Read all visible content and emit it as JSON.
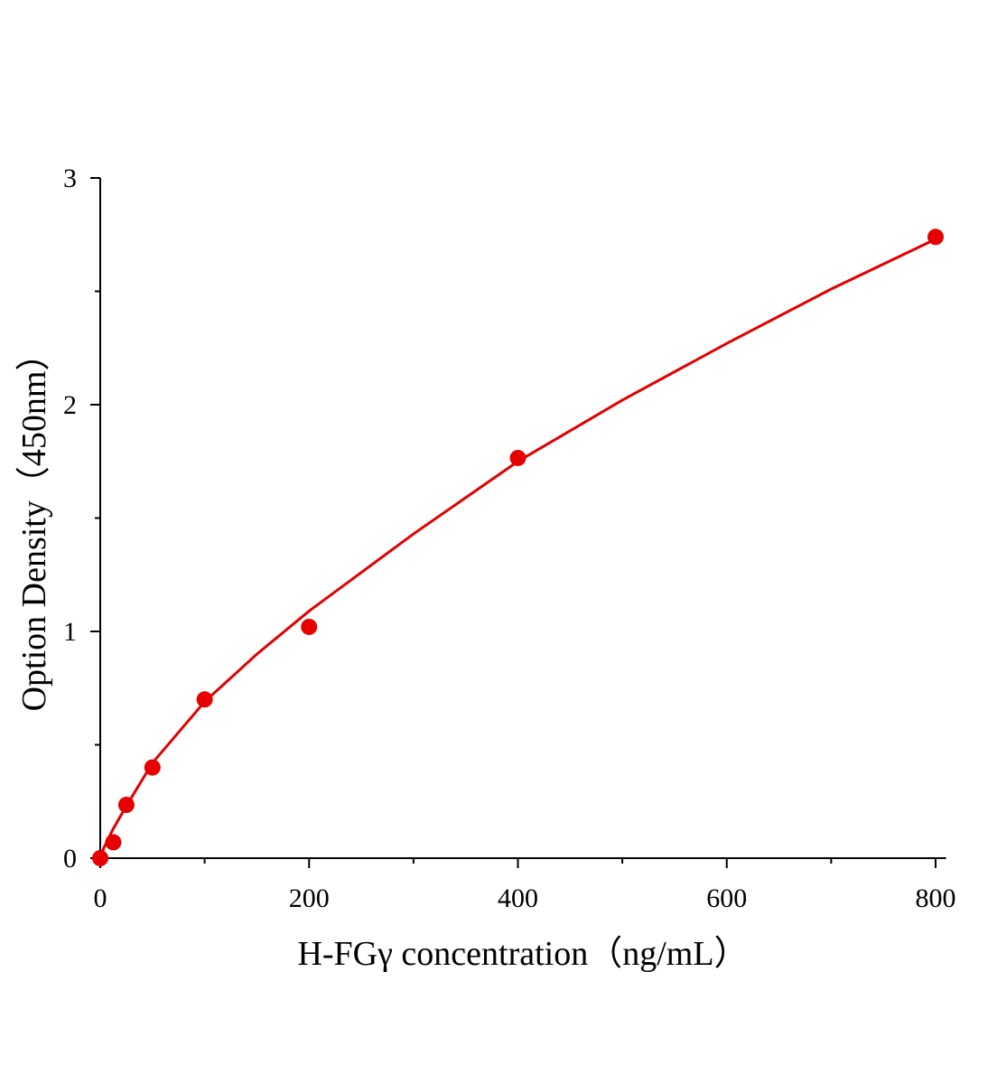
{
  "chart_data": {
    "type": "scatter",
    "x_label": "H-FGγ concentration（ng/mL）",
    "y_label": "Option Density（450nm）",
    "xlim": [
      0,
      810
    ],
    "ylim": [
      0,
      3
    ],
    "xticks": [
      0,
      200,
      400,
      600,
      800
    ],
    "yticks": [
      0,
      1,
      2,
      3
    ],
    "xminorticks": [
      100,
      300,
      500,
      700
    ],
    "yminorticks": [
      0.5,
      1.5,
      2.5
    ],
    "series": [
      {
        "type": "scatter",
        "color": "#e60000",
        "x": [
          0,
          12.5,
          25,
          50,
          100,
          200,
          400,
          800
        ],
        "values": [
          0,
          0.07,
          0.235,
          0.4,
          0.7,
          1.02,
          1.765,
          2.74
        ]
      },
      {
        "type": "line",
        "color": "#e00000",
        "x": [
          0,
          3,
          6,
          12.5,
          25,
          50,
          100,
          150,
          200,
          300,
          400,
          500,
          600,
          700,
          800
        ],
        "values": [
          0,
          0.04,
          0.07,
          0.13,
          0.23,
          0.42,
          0.69,
          0.9,
          1.09,
          1.43,
          1.75,
          2.02,
          2.27,
          2.51,
          2.73
        ]
      }
    ]
  }
}
